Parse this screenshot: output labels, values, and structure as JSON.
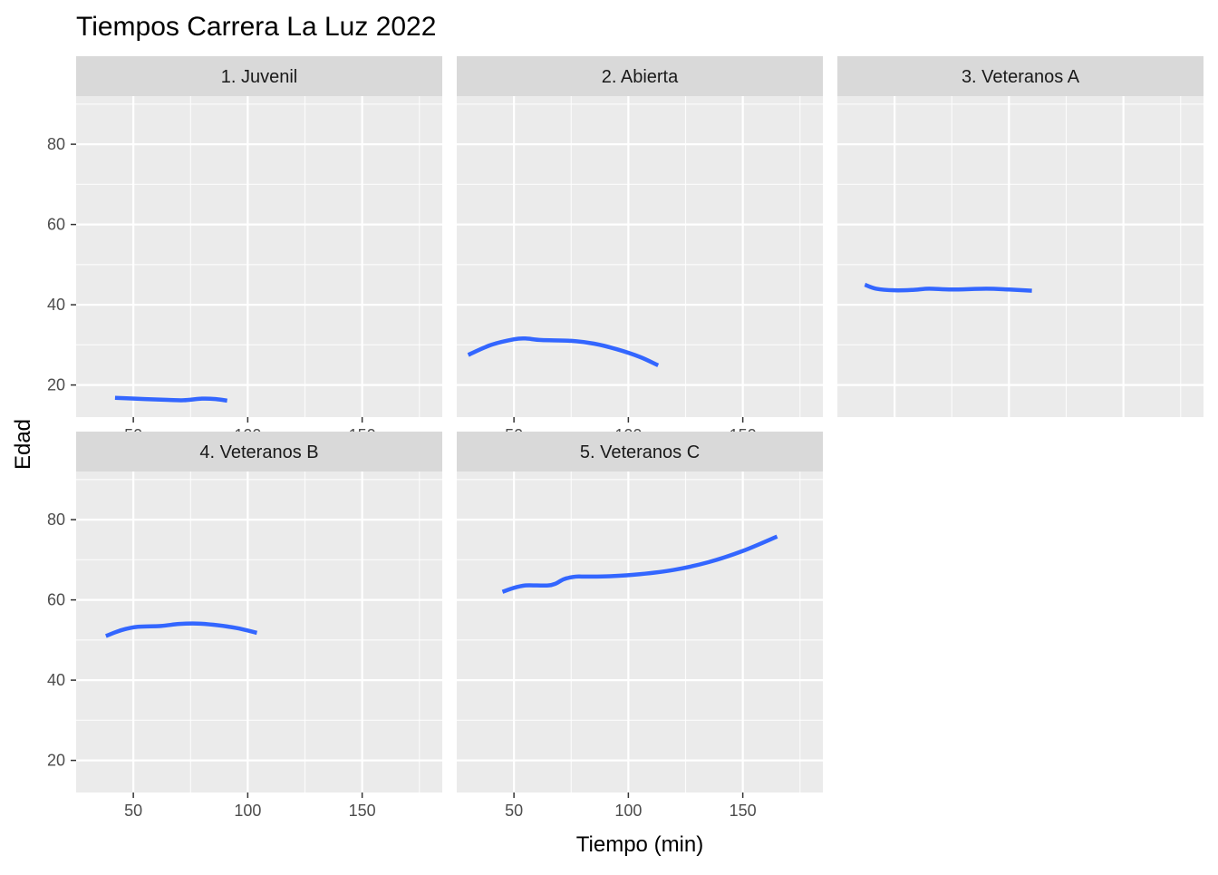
{
  "colors": {
    "panel_background": "#ebebeb",
    "strip_background": "#d9d9d9",
    "grid_major": "#ffffff",
    "line": "#3366ff",
    "tick": "#333333",
    "tick_text": "#4d4d4d"
  },
  "chart_data": {
    "type": "line",
    "title": "Tiempos Carrera La Luz  2022",
    "xlabel": "Tiempo (min)",
    "ylabel": "Edad",
    "xlim": [
      25,
      185
    ],
    "ylim": [
      12,
      92
    ],
    "x_ticks": [
      50,
      100,
      150
    ],
    "y_ticks": [
      20,
      40,
      60,
      80
    ],
    "x_minor_grid": [
      25,
      75,
      125,
      175
    ],
    "y_minor_grid": [
      30,
      50,
      70,
      90
    ],
    "grid": true,
    "legend": "none",
    "facets": [
      {
        "label": "1. Juvenil",
        "series": [
          {
            "x": [
              42,
              55,
              65,
              72,
              80,
              86,
              91
            ],
            "y": [
              16.8,
              16.5,
              16.3,
              16.2,
              16.6,
              16.5,
              16.1
            ]
          }
        ]
      },
      {
        "label": "2. Abierta",
        "series": [
          {
            "x": [
              30,
              40,
              50,
              55,
              62,
              75,
              85,
              95,
              105,
              113
            ],
            "y": [
              27.5,
              30.0,
              31.4,
              31.6,
              31.2,
              31.0,
              30.3,
              28.9,
              27.0,
              24.9
            ]
          }
        ]
      },
      {
        "label": "3. Veteranos A",
        "series": [
          {
            "x": [
              37,
              42,
              50,
              58,
              65,
              75,
              90,
              100,
              110
            ],
            "y": [
              45.0,
              44.0,
              43.6,
              43.7,
              44.0,
              43.8,
              44.0,
              43.8,
              43.5
            ]
          }
        ]
      },
      {
        "label": "4. Veteranos B",
        "series": [
          {
            "x": [
              38,
              45,
              52,
              62,
              70,
              78,
              85,
              95,
              104
            ],
            "y": [
              51.0,
              52.5,
              53.3,
              53.5,
              54.0,
              54.1,
              53.8,
              53.0,
              51.8
            ]
          }
        ]
      },
      {
        "label": "5. Veteranos C",
        "series": [
          {
            "x": [
              45,
              50,
              55,
              60,
              65,
              68,
              72,
              77,
              82,
              92,
              105,
              120,
              135,
              150,
              165
            ],
            "y": [
              62.0,
              63.0,
              63.6,
              63.6,
              63.6,
              64.0,
              65.2,
              65.8,
              65.8,
              65.9,
              66.4,
              67.5,
              69.4,
              72.2,
              75.8
            ]
          }
        ]
      }
    ]
  }
}
